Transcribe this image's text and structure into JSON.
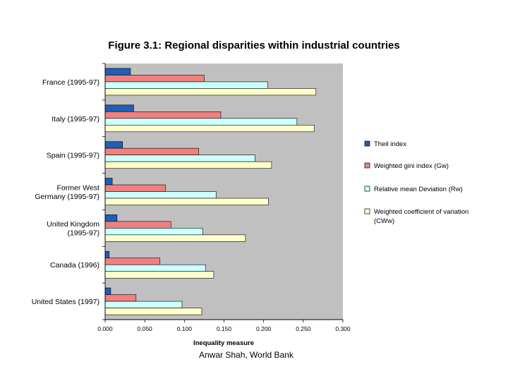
{
  "chart_data": {
    "type": "bar",
    "orientation": "horizontal",
    "title": "Figure 3.1: Regional disparities within industrial countries",
    "xlabel": "Inequality measure",
    "ylabel": "",
    "xlim": [
      0,
      0.3
    ],
    "xticks": [
      "0.000",
      "0.050",
      "0.100",
      "0.150",
      "0.200",
      "0.250",
      "0.300"
    ],
    "xtick_values": [
      0,
      0.05,
      0.1,
      0.15,
      0.2,
      0.25,
      0.3
    ],
    "grid": false,
    "legend_position": "right",
    "categories": [
      [
        "France (1995-97)"
      ],
      [
        "Italy (1995-97)"
      ],
      [
        "Spain (1995-97)"
      ],
      [
        "Former West",
        "Germany (1995-97)"
      ],
      [
        "United Kingdom",
        "(1995-97)"
      ],
      [
        "Canada (1996)"
      ],
      [
        "United States (1997)"
      ]
    ],
    "series": [
      {
        "name": [
          "Theil index"
        ],
        "color": "#1f5fb4",
        "values": [
          0.032,
          0.036,
          0.022,
          0.009,
          0.015,
          0.005,
          0.007
        ]
      },
      {
        "name": [
          "Weighted gini index (Gw)"
        ],
        "color": "#f08080",
        "values": [
          0.125,
          0.146,
          0.118,
          0.076,
          0.083,
          0.069,
          0.039
        ]
      },
      {
        "name": [
          "Relative mean Deviation (Rw)"
        ],
        "color": "#ccffff",
        "values": [
          0.205,
          0.242,
          0.189,
          0.14,
          0.123,
          0.127,
          0.097
        ]
      },
      {
        "name": [
          "Weighted coefficient of variation",
          "(CWw)"
        ],
        "color": "#ffffcc",
        "values": [
          0.266,
          0.264,
          0.21,
          0.206,
          0.177,
          0.137,
          0.122
        ]
      }
    ]
  },
  "colors": {
    "plot_bg": "#c0c0c0",
    "bar_stroke": "#000000"
  },
  "caption": "Anwar Shah, World Bank"
}
